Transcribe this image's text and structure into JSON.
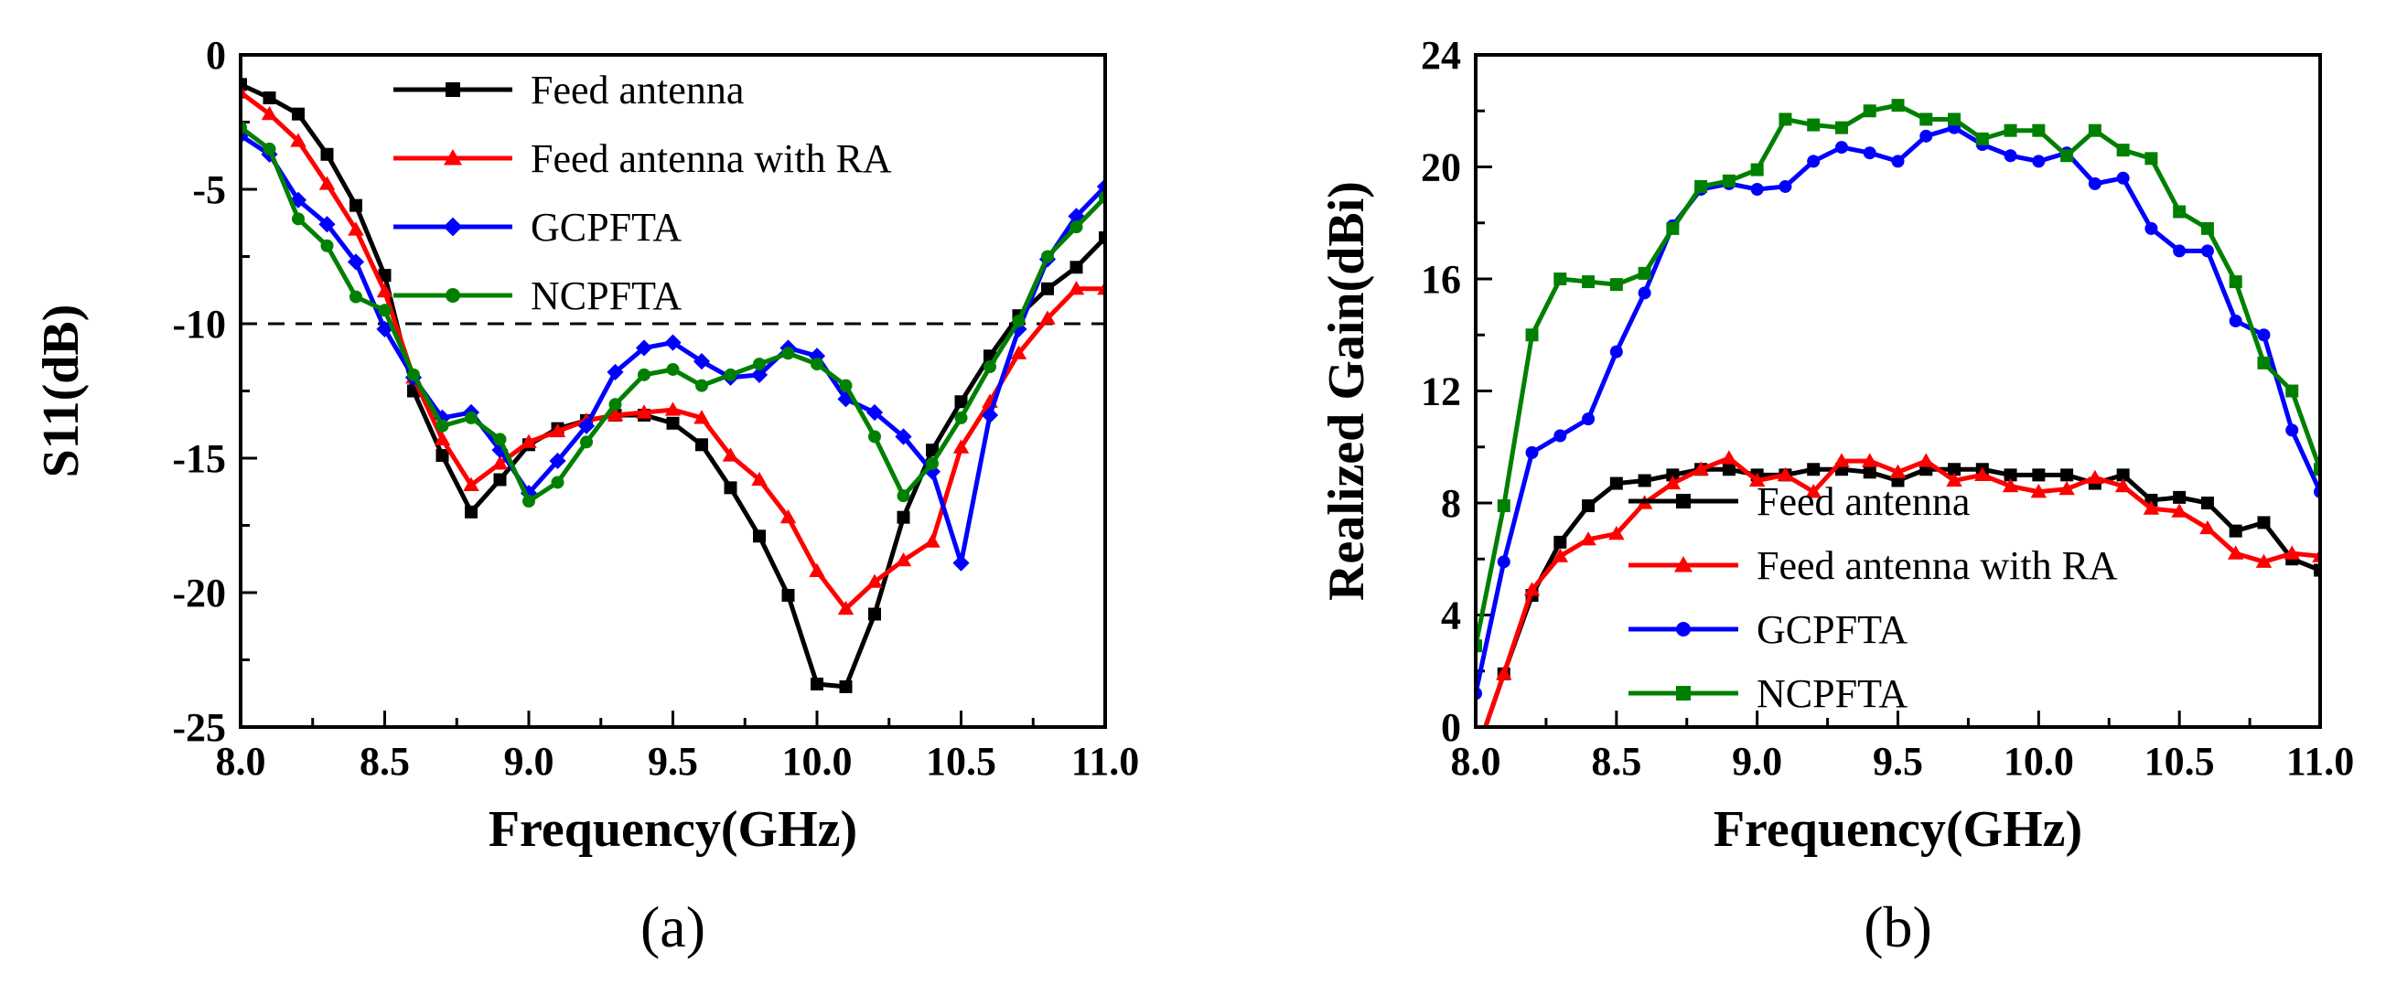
{
  "chart_data": [
    {
      "type": "line",
      "panel_label": "(a)",
      "xlabel": "Frequency(GHz)",
      "ylabel": "S11(dB)",
      "xlim": [
        8.0,
        11.0
      ],
      "ylim": [
        -25,
        0
      ],
      "xticks": [
        "8.0",
        "8.5",
        "9.0",
        "9.5",
        "10.0",
        "10.5",
        "11.0"
      ],
      "yticks": [
        "0",
        "-5",
        "-10",
        "-15",
        "-20",
        "-25"
      ],
      "reference_line": {
        "y": -10,
        "style": "dashed"
      },
      "legend_position": "top-right",
      "x": [
        8.0,
        8.1,
        8.2,
        8.3,
        8.4,
        8.5,
        8.6,
        8.7,
        8.8,
        8.9,
        9.0,
        9.1,
        9.2,
        9.3,
        9.4,
        9.5,
        9.6,
        9.7,
        9.8,
        9.9,
        10.0,
        10.1,
        10.2,
        10.3,
        10.4,
        10.5,
        10.6,
        10.7,
        10.8,
        10.9,
        11.0
      ],
      "series": [
        {
          "name": "Feed antenna",
          "color": "#000000",
          "marker": "square",
          "values": [
            -1.1,
            -1.6,
            -2.2,
            -3.7,
            -5.6,
            -8.2,
            -12.5,
            -14.9,
            -17.0,
            -15.8,
            -14.5,
            -13.9,
            -13.6,
            -13.4,
            -13.4,
            -13.7,
            -14.5,
            -16.1,
            -17.9,
            -20.1,
            -23.4,
            -23.5,
            -20.8,
            -17.2,
            -14.7,
            -12.9,
            -11.2,
            -9.7,
            -8.7,
            -7.9,
            -6.8
          ]
        },
        {
          "name": "Feed antenna with RA",
          "color": "#ff0000",
          "marker": "triangle",
          "values": [
            -1.4,
            -2.2,
            -3.2,
            -4.8,
            -6.5,
            -8.8,
            -12.0,
            -14.3,
            -16.0,
            -15.2,
            -14.4,
            -14.0,
            -13.6,
            -13.4,
            -13.3,
            -13.2,
            -13.5,
            -14.9,
            -15.8,
            -17.2,
            -19.2,
            -20.6,
            -19.6,
            -18.8,
            -18.1,
            -14.6,
            -12.9,
            -11.1,
            -9.8,
            -8.7,
            -8.7
          ]
        },
        {
          "name": "GCPFTA",
          "color": "#0000ff",
          "marker": "diamond",
          "values": [
            -3.0,
            -3.7,
            -5.4,
            -6.3,
            -7.7,
            -10.2,
            -12.0,
            -13.5,
            -13.3,
            -14.7,
            -16.3,
            -15.1,
            -13.8,
            -11.8,
            -10.9,
            -10.7,
            -11.4,
            -12.0,
            -11.9,
            -10.9,
            -11.2,
            -12.8,
            -13.3,
            -14.2,
            -15.5,
            -18.9,
            -13.4,
            -10.2,
            -7.6,
            -6.0,
            -4.9
          ]
        },
        {
          "name": "NCPFTA",
          "color": "#008000",
          "marker": "circle",
          "values": [
            -2.7,
            -3.5,
            -6.1,
            -7.1,
            -9.0,
            -9.5,
            -11.9,
            -13.8,
            -13.5,
            -14.3,
            -16.6,
            -15.9,
            -14.4,
            -13.0,
            -11.9,
            -11.7,
            -12.3,
            -11.9,
            -11.5,
            -11.1,
            -11.5,
            -12.3,
            -14.2,
            -16.4,
            -15.2,
            -13.5,
            -11.6,
            -9.9,
            -7.5,
            -6.4,
            -5.3
          ]
        }
      ]
    },
    {
      "type": "line",
      "panel_label": "(b)",
      "xlabel": "Frequency(GHz)",
      "ylabel": "Realized Gain(dBi)",
      "xlim": [
        8.0,
        11.0
      ],
      "ylim": [
        0,
        24
      ],
      "xticks": [
        "8.0",
        "8.5",
        "9.0",
        "9.5",
        "10.0",
        "10.5",
        "11.0"
      ],
      "yticks": [
        "0",
        "4",
        "8",
        "12",
        "16",
        "20",
        "24"
      ],
      "legend_position": "bottom-center",
      "x": [
        8.0,
        8.1,
        8.2,
        8.3,
        8.4,
        8.5,
        8.6,
        8.7,
        8.8,
        8.9,
        9.0,
        9.1,
        9.2,
        9.3,
        9.4,
        9.5,
        9.6,
        9.7,
        9.8,
        9.9,
        10.0,
        10.1,
        10.2,
        10.3,
        10.4,
        10.5,
        10.6,
        10.7,
        10.8,
        10.9,
        11.0
      ],
      "series": [
        {
          "name": "Feed antenna",
          "color": "#000000",
          "marker": "square",
          "values": [
            -1.0,
            1.9,
            4.7,
            6.6,
            7.9,
            8.7,
            8.8,
            9.0,
            9.2,
            9.2,
            9.0,
            9.0,
            9.2,
            9.2,
            9.1,
            8.8,
            9.2,
            9.2,
            9.2,
            9.0,
            9.0,
            9.0,
            8.7,
            9.0,
            8.1,
            8.2,
            8.0,
            7.0,
            7.3,
            6.0,
            5.6
          ]
        },
        {
          "name": "Feed antenna with RA",
          "color": "#ff0000",
          "marker": "triangle",
          "values": [
            -1.0,
            1.9,
            4.9,
            6.1,
            6.7,
            6.9,
            8.0,
            8.7,
            9.2,
            9.6,
            8.8,
            9.0,
            8.4,
            9.5,
            9.5,
            9.1,
            9.5,
            8.8,
            9.0,
            8.6,
            8.4,
            8.5,
            8.9,
            8.6,
            7.8,
            7.7,
            7.1,
            6.2,
            5.9,
            6.2,
            6.1
          ]
        },
        {
          "name": "GCPFTA",
          "color": "#0000ff",
          "marker": "circle",
          "values": [
            1.2,
            5.9,
            9.8,
            10.4,
            11.0,
            13.4,
            15.5,
            17.9,
            19.2,
            19.4,
            19.2,
            19.3,
            20.2,
            20.7,
            20.5,
            20.2,
            21.1,
            21.4,
            20.8,
            20.4,
            20.2,
            20.5,
            19.4,
            19.6,
            17.8,
            17.0,
            17.0,
            14.5,
            14.0,
            10.6,
            8.4
          ]
        },
        {
          "name": "NCPFTA",
          "color": "#008000",
          "marker": "square",
          "values": [
            2.9,
            7.9,
            14.0,
            16.0,
            15.9,
            15.8,
            16.2,
            17.8,
            19.3,
            19.5,
            19.9,
            21.7,
            21.5,
            21.4,
            22.0,
            22.2,
            21.7,
            21.7,
            21.0,
            21.3,
            21.3,
            20.4,
            21.3,
            20.6,
            20.3,
            18.4,
            17.8,
            15.9,
            13.0,
            12.0,
            9.2
          ]
        }
      ]
    }
  ]
}
